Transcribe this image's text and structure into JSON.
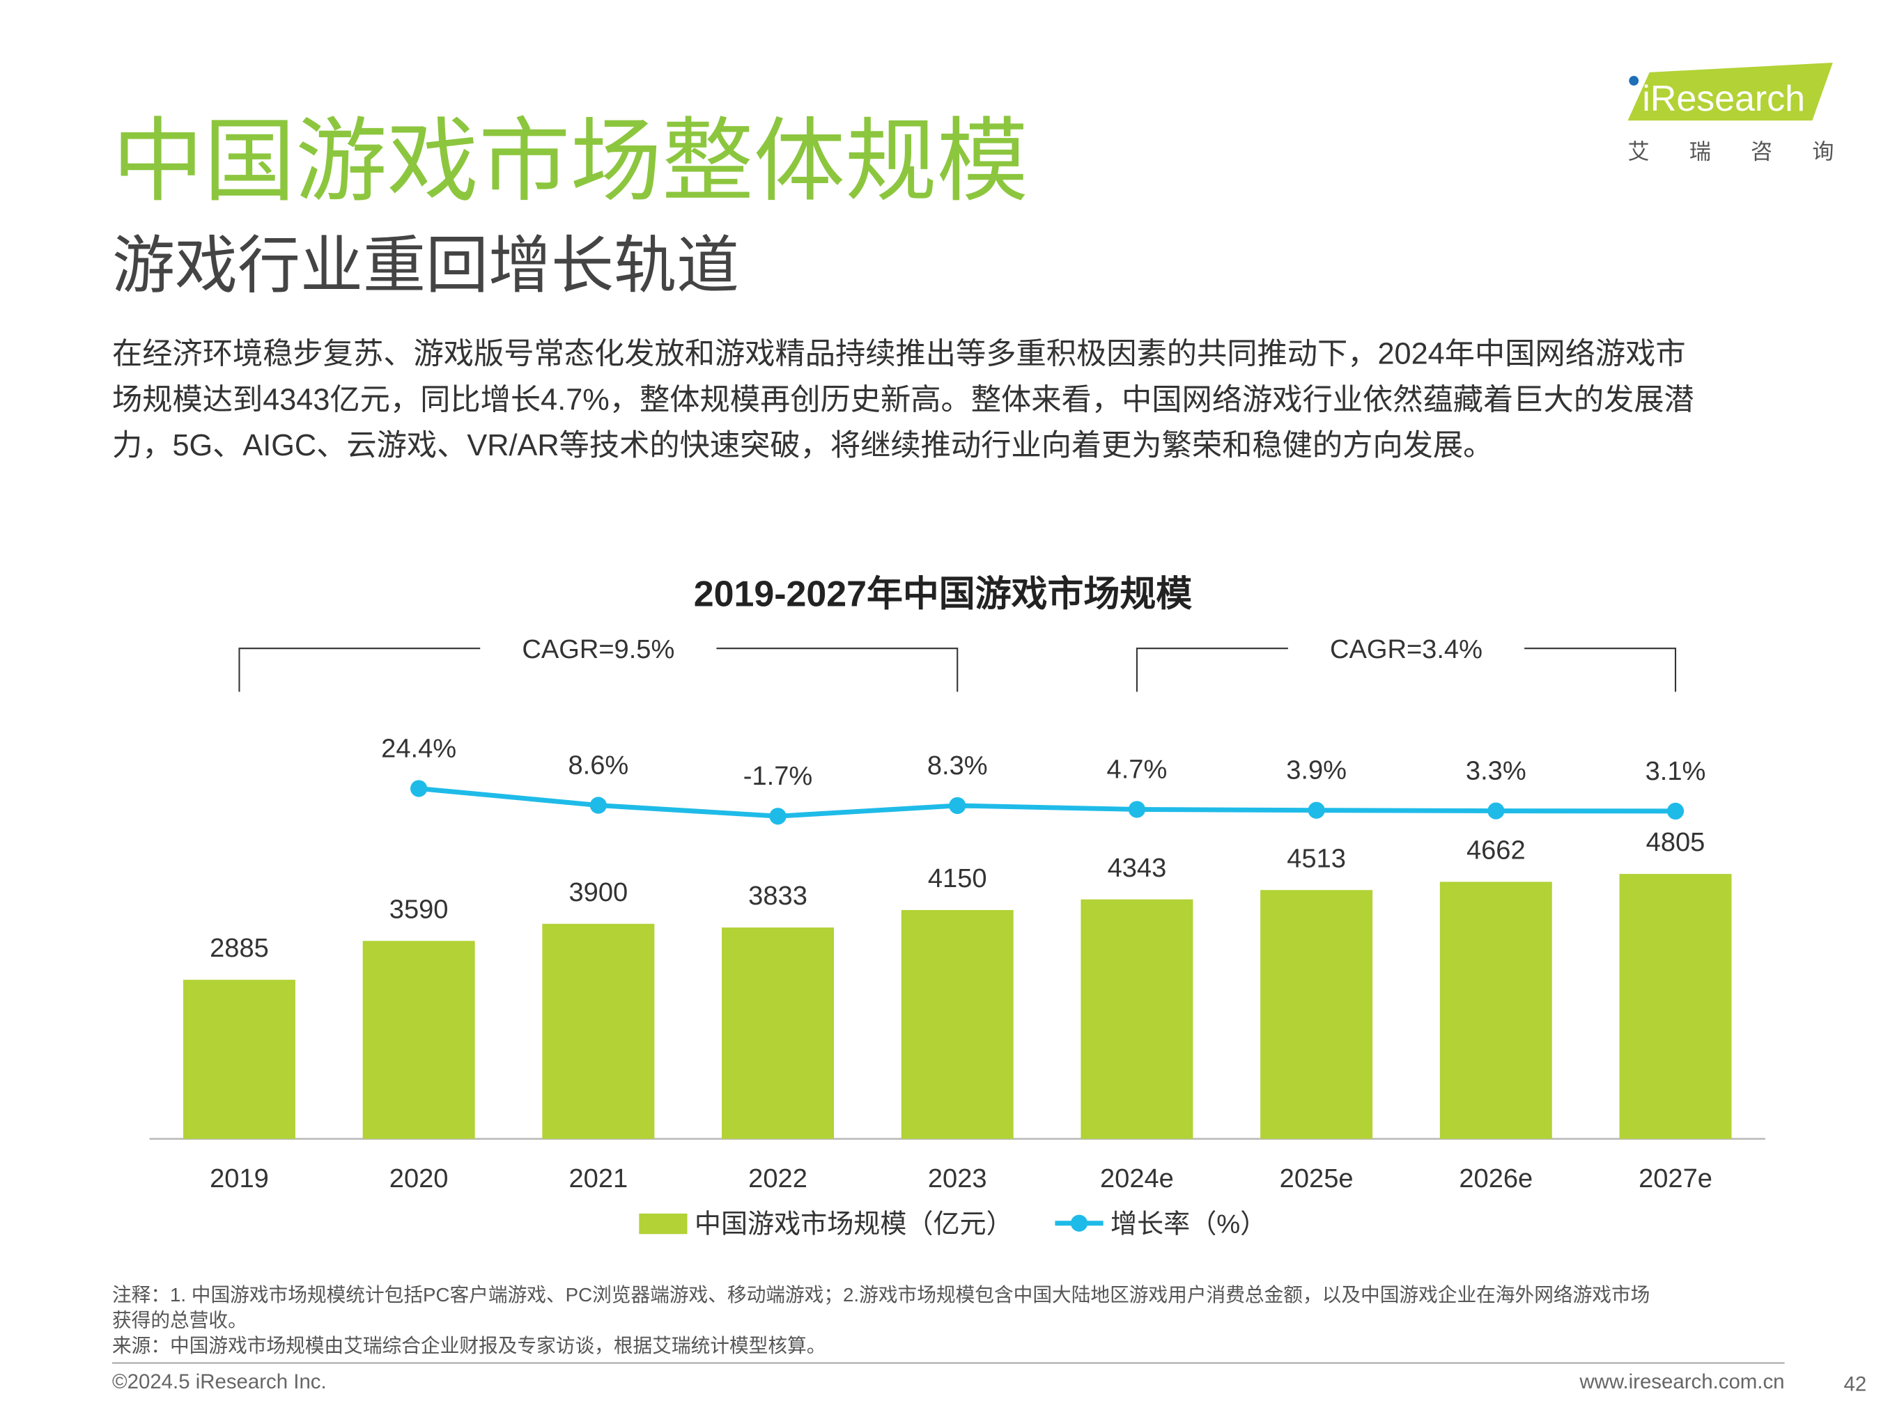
{
  "logo": {
    "name": "iResearch",
    "tagline": "艾瑞咨询"
  },
  "header": {
    "title": "中国游戏市场整体规模",
    "subtitle": "游戏行业重回增长轨道",
    "paragraph_lines": [
      "在经济环境稳步复苏、游戏版号常态化发放和游戏精品持续推出等多重积极因素的共同推动下，2024年中国网络游戏市",
      "场规模达到4343亿元，同比增长4.7%，整体规模再创历史新高。整体来看，中国网络游戏行业依然蕴藏着巨大的发展潜",
      "力，5G、AIGC、云游戏、VR/AR等技术的快速突破，将继续推动行业向着更为繁荣和稳健的方向发展。"
    ]
  },
  "chart_data": {
    "type": "bar",
    "title": "2019-2027年中国游戏市场规模",
    "annotations": [
      "CAGR=9.5%",
      "CAGR=3.4%"
    ],
    "categories": [
      "2019",
      "2020",
      "2021",
      "2022",
      "2023",
      "2024e",
      "2025e",
      "2026e",
      "2027e"
    ],
    "series": [
      {
        "name": "中国游戏市场规模（亿元）",
        "type": "bar",
        "color": "#b2d235",
        "values": [
          2885,
          3590,
          3900,
          3833,
          4150,
          4343,
          4513,
          4662,
          4805
        ]
      },
      {
        "name": "增长率（%）",
        "type": "line",
        "axis": "y2",
        "color": "#1fbbe8",
        "values": [
          null,
          24.4,
          8.6,
          -1.7,
          8.3,
          4.7,
          3.9,
          3.3,
          3.1
        ],
        "value_labels": [
          null,
          "24.4%",
          "8.6%",
          "-1.7%",
          "8.3%",
          "4.7%",
          "3.9%",
          "3.3%",
          "3.1%"
        ]
      }
    ],
    "ylim": [
      0,
      8000
    ],
    "y2lim": [
      -306,
      110
    ],
    "legend": "bottom"
  },
  "notes": [
    "注释：1. 中国游戏市场规模统计包括PC客户端游戏、PC浏览器端游戏、移动端游戏；2.游戏市场规模包含中国大陆地区游戏用户消费总金额，以及中国游戏企业在海外网络游戏市场",
    "获得的总营收。",
    "来源：中国游戏市场规模由艾瑞综合企业财报及专家访谈，根据艾瑞统计模型核算。"
  ],
  "footer": {
    "copyright": "©2024.5 iResearch Inc.",
    "website": "www.iresearch.com.cn",
    "page": "42"
  }
}
